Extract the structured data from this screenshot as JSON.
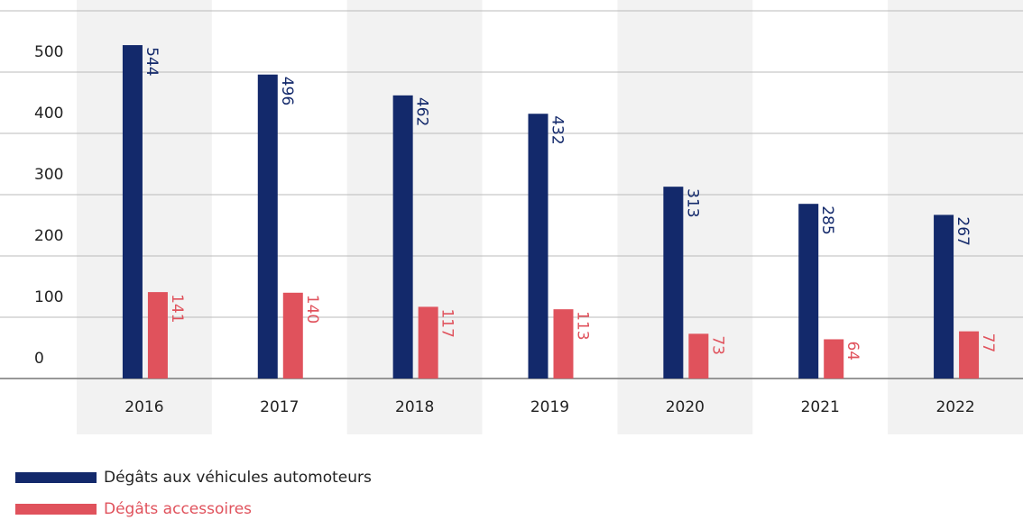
{
  "chart_data": {
    "type": "bar",
    "categories": [
      "2016",
      "2017",
      "2018",
      "2019",
      "2020",
      "2021",
      "2022"
    ],
    "series": [
      {
        "name": "Dégâts aux véhicules automoteurs",
        "color": "#13296b",
        "values": [
          544,
          496,
          462,
          432,
          313,
          285,
          267
        ]
      },
      {
        "name": "Dégâts accessoires",
        "color": "#e0525c",
        "values": [
          141,
          140,
          117,
          113,
          73,
          64,
          77
        ]
      }
    ],
    "ylim": [
      0,
      600
    ],
    "yticks": [
      0,
      100,
      200,
      300,
      400,
      500
    ],
    "grid": true
  }
}
